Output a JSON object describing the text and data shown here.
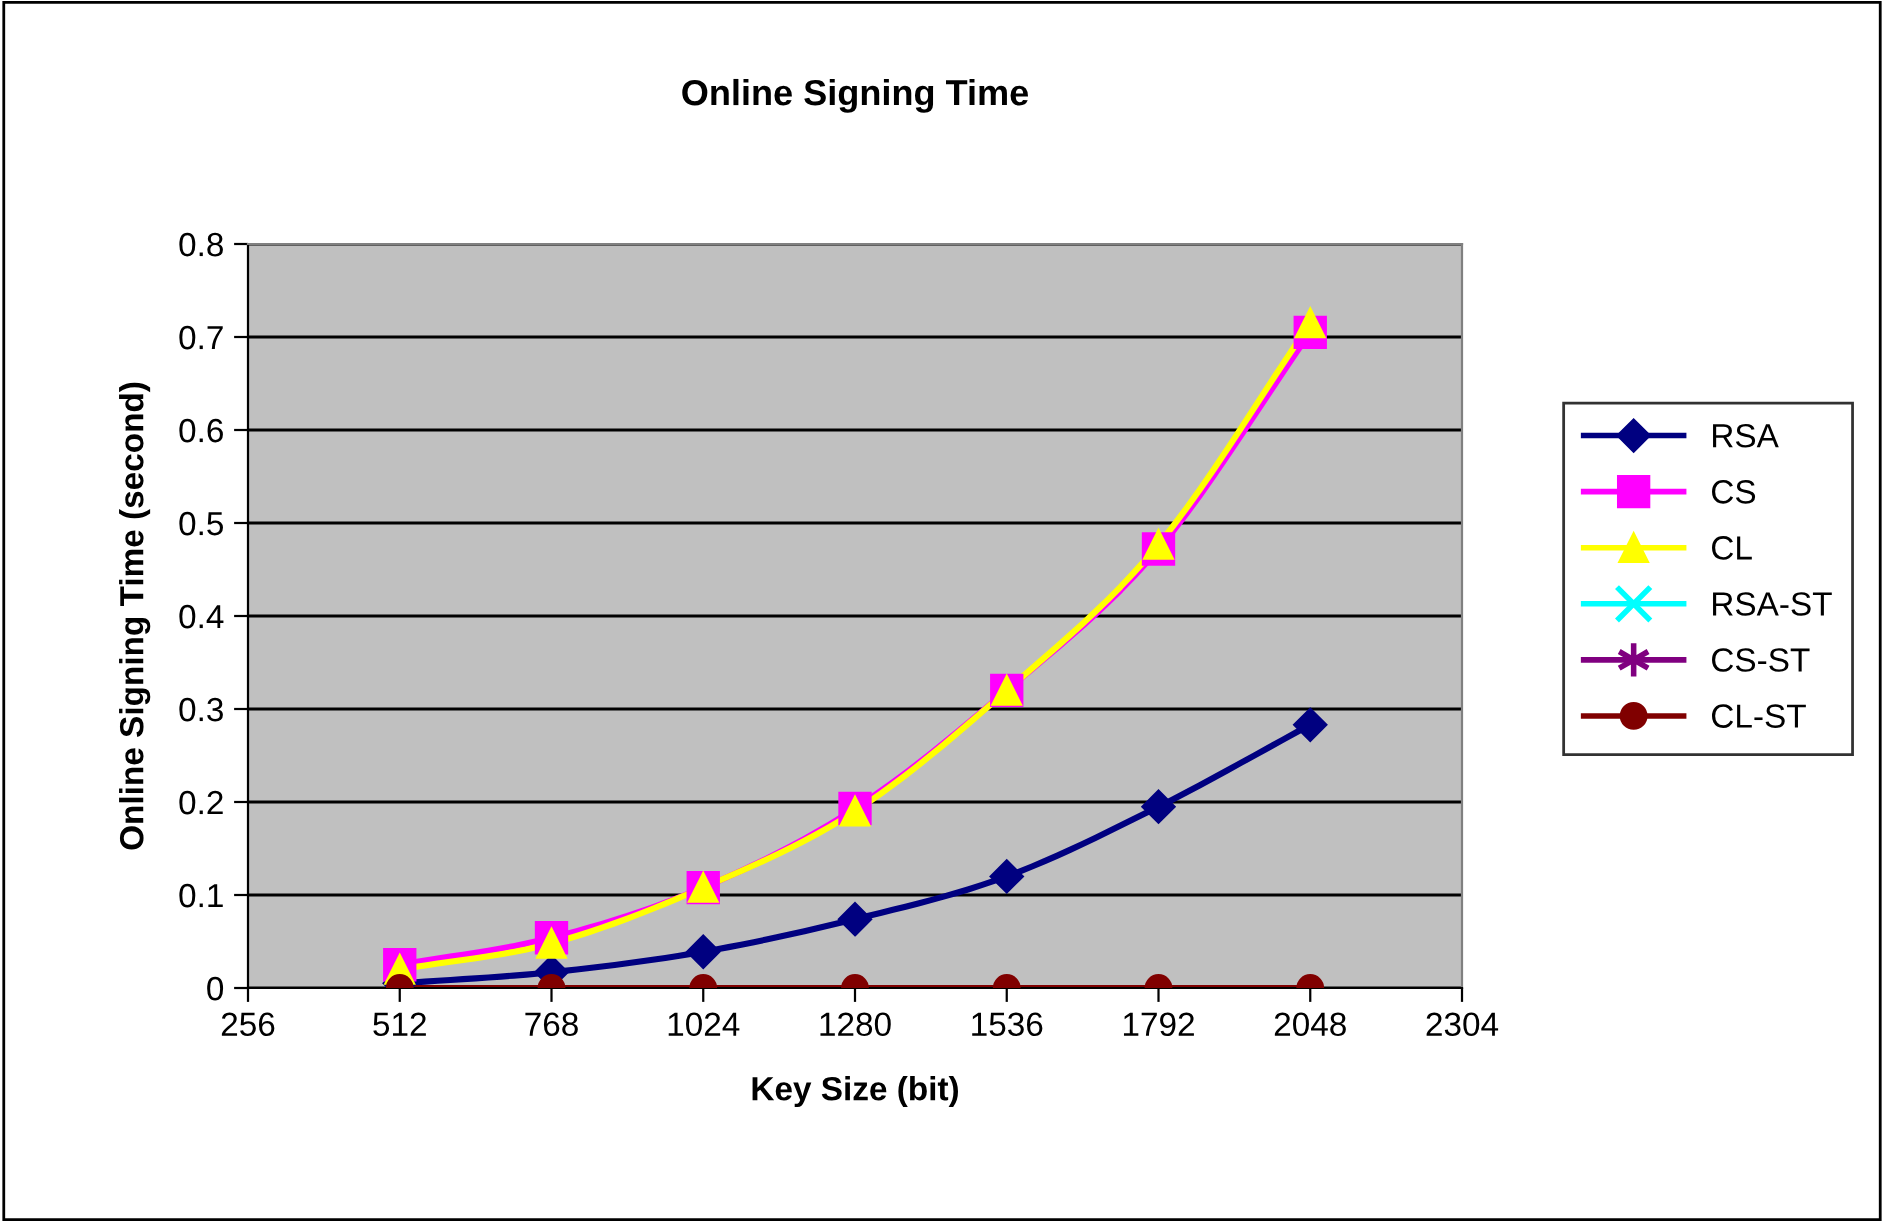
{
  "chart_data": {
    "type": "line",
    "title": "Online Signing Time",
    "xlabel": "Key Size (bit)",
    "ylabel": "Online Signing Time (second)",
    "x": [
      512,
      768,
      1024,
      1280,
      1536,
      1792,
      2048
    ],
    "xlim": [
      256,
      2304
    ],
    "xticks": [
      256,
      512,
      768,
      1024,
      1280,
      1536,
      1792,
      2048,
      2304
    ],
    "ylim": [
      0,
      0.8
    ],
    "yticks": [
      0,
      0.1,
      0.2,
      0.3,
      0.4,
      0.5,
      0.6,
      0.7,
      0.8
    ],
    "grid": "y",
    "legend": "right",
    "series": [
      {
        "name": "RSA",
        "color": "#000080",
        "marker": "diamond",
        "values": [
          0.005,
          0.017,
          0.039,
          0.074,
          0.12,
          0.195,
          0.283
        ]
      },
      {
        "name": "CS",
        "color": "#ff00ff",
        "marker": "square",
        "values": [
          0.025,
          0.054,
          0.108,
          0.193,
          0.32,
          0.472,
          0.705
        ]
      },
      {
        "name": "CL",
        "color": "#ffff00",
        "marker": "triangle",
        "values": [
          0.02,
          0.048,
          0.108,
          0.19,
          0.32,
          0.477,
          0.715
        ]
      },
      {
        "name": "RSA-ST",
        "color": "#00ffff",
        "marker": "cross",
        "values": [
          null,
          null,
          null,
          null,
          null,
          null,
          null
        ]
      },
      {
        "name": "CS-ST",
        "color": "#800080",
        "marker": "star",
        "values": [
          null,
          null,
          null,
          null,
          null,
          null,
          null
        ]
      },
      {
        "name": "CL-ST",
        "color": "#800000",
        "marker": "circle",
        "values": [
          0,
          0,
          0,
          0,
          0,
          0,
          0
        ]
      }
    ]
  }
}
